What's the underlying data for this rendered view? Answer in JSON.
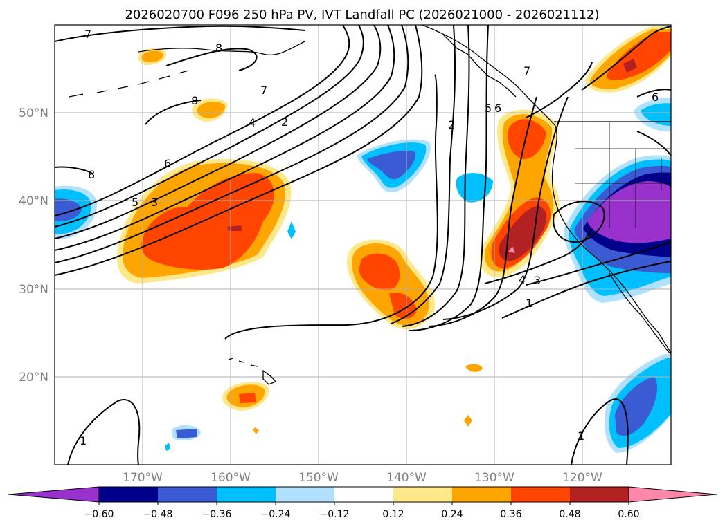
{
  "title": "2026020700 F096 250 hPa PV, IVT Landfall PC (2026021000 - 2026021112)",
  "map": {
    "lon_range": [
      -180,
      -110
    ],
    "lat_range": [
      10,
      60
    ],
    "lat_labels": [
      "20°N",
      "30°N",
      "40°N",
      "50°N"
    ],
    "lon_labels": [
      "170°W",
      "160°W",
      "150°W",
      "140°W",
      "130°W",
      "120°W"
    ],
    "gridlines": true,
    "contour_labels": [
      "7",
      "8",
      "8",
      "7",
      "4",
      "2",
      "6",
      "5",
      "3",
      "8",
      "2",
      "5",
      "6",
      "7",
      "4",
      "3",
      "1",
      "1",
      "1",
      "6"
    ]
  },
  "colorbar": {
    "orientation": "horizontal",
    "extend": "both",
    "ticks": [
      "−0.60",
      "−0.48",
      "−0.36",
      "−0.24",
      "−0.12",
      "0.12",
      "0.24",
      "0.36",
      "0.48",
      "0.60"
    ],
    "colors": [
      "#9932cc",
      "#00008b",
      "#3a5bd3",
      "#00bfff",
      "#b0e2ff",
      "#ffffff",
      "#ffe88a",
      "#ffa500",
      "#ff4500",
      "#b22222",
      "#ff88aa"
    ]
  }
}
